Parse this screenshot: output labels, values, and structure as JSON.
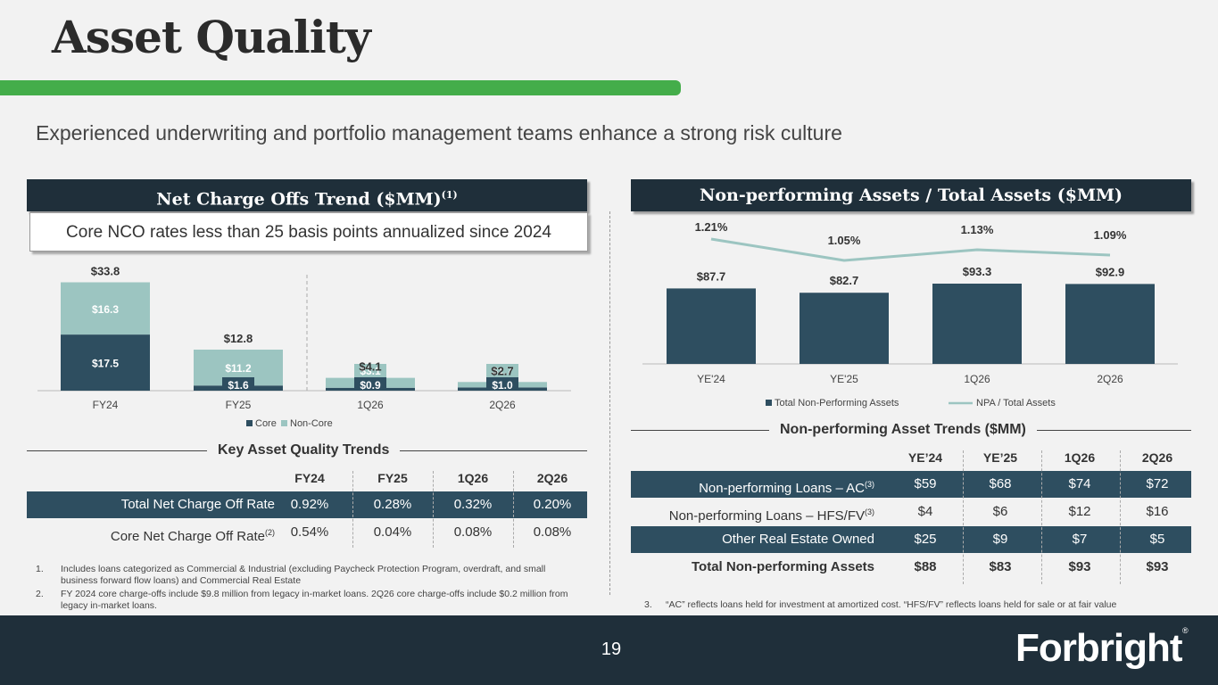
{
  "title": "Asset Quality",
  "subtitle": "Experienced underwriting and portfolio management teams enhance a strong risk culture",
  "nco": {
    "header": "Net Charge Offs Trend ($MM)",
    "header_sup": "(1)",
    "callout": "Core NCO rates less than 25 basis points annualized since 2024"
  },
  "npa": {
    "header": "Non-performing Assets / Total Assets ($MM)"
  },
  "chart_data": [
    {
      "type": "bar",
      "stacked": true,
      "categories": [
        "FY24",
        "FY25",
        "1Q26",
        "2Q26"
      ],
      "series": [
        {
          "name": "Core",
          "values": [
            17.5,
            1.6,
            0.9,
            1.0
          ],
          "labels": [
            "$17.5",
            "$1.6",
            "$0.9",
            "$1.0"
          ],
          "color": "#2e4e60"
        },
        {
          "name": "Non-Core",
          "values": [
            16.3,
            11.2,
            3.1,
            1.7
          ],
          "labels": [
            "$16.3",
            "$11.2",
            "$3.1",
            "$1.7"
          ],
          "color": "#9cc5c1"
        }
      ],
      "totals": [
        33.8,
        12.8,
        4.1,
        2.7
      ],
      "total_labels": [
        "$33.8",
        "$12.8",
        "$4.1",
        "$2.7"
      ],
      "legend": "bottom"
    },
    {
      "type": "bar",
      "categories": [
        "YE'24",
        "YE'25",
        "1Q26",
        "2Q26"
      ],
      "series": [
        {
          "name": "Total Non-Performing Assets",
          "values": [
            87.7,
            82.7,
            93.3,
            92.9
          ],
          "labels": [
            "$87.7",
            "$82.7",
            "$93.3",
            "$92.9"
          ],
          "color": "#2e4e60"
        },
        {
          "name": "NPA / Total Assets",
          "type": "line",
          "values": [
            1.21,
            1.05,
            1.13,
            1.09
          ],
          "labels": [
            "1.21%",
            "1.05%",
            "1.13%",
            "1.09%"
          ],
          "color": "#9cc5c1"
        }
      ],
      "legend": "bottom"
    }
  ],
  "kaq": {
    "title": "Key Asset Quality Trends",
    "columns": [
      "FY24",
      "FY25",
      "1Q26",
      "2Q26"
    ],
    "rows": [
      {
        "label": "Total Net Charge Off Rate",
        "sup": "",
        "values": [
          "0.92%",
          "0.28%",
          "0.32%",
          "0.20%"
        ]
      },
      {
        "label": "Core Net Charge Off Rate",
        "sup": "(2)",
        "values": [
          "0.54%",
          "0.04%",
          "0.08%",
          "0.08%"
        ]
      }
    ]
  },
  "npt": {
    "title": "Non-performing Asset Trends ($MM)",
    "columns": [
      "YE’24",
      "YE’25",
      "1Q26",
      "2Q26"
    ],
    "rows": [
      {
        "label": "Non-performing Loans – AC",
        "sup": "(3)",
        "values": [
          "$59",
          "$68",
          "$74",
          "$72"
        ]
      },
      {
        "label": "Non-performing Loans – HFS/FV",
        "sup": "(3)",
        "values": [
          "$4",
          "$6",
          "$12",
          "$16"
        ]
      },
      {
        "label": "Other Real Estate Owned",
        "sup": "",
        "values": [
          "$25",
          "$9",
          "$7",
          "$5"
        ]
      },
      {
        "label": "Total Non-performing Assets",
        "sup": "",
        "values": [
          "$88",
          "$83",
          "$93",
          "$93"
        ]
      }
    ]
  },
  "footnotes": {
    "f1_num": "1.",
    "f1": "Includes loans categorized as Commercial & Industrial (excluding Paycheck Protection Program, overdraft, and small business forward flow loans) and Commercial Real Estate",
    "f2_num": "2.",
    "f2": "FY 2024 core charge-offs include $9.8 million from legacy in-market loans. 2Q26 core charge-offs include $0.2 million from legacy in-market loans.",
    "f3_num": "3.",
    "f3": "“AC” reflects loans held for investment at amortized cost. “HFS/FV” reflects loans held for sale or at fair value"
  },
  "footer": {
    "page": "19",
    "logo": "Forbright",
    "logo_mark": "®"
  },
  "colors": {
    "navy": "#1f2f3a",
    "bar_dark": "#2e4e60",
    "teal_light": "#9cc5c1",
    "green": "#44ad4a"
  }
}
